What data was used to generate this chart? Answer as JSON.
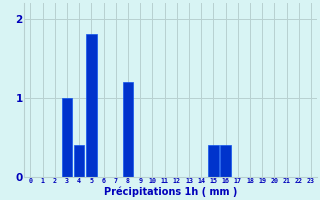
{
  "hours": [
    0,
    1,
    2,
    3,
    4,
    5,
    6,
    7,
    8,
    9,
    10,
    11,
    12,
    13,
    14,
    15,
    16,
    17,
    18,
    19,
    20,
    21,
    22,
    23
  ],
  "values": [
    0,
    0,
    0,
    1.0,
    0.4,
    1.8,
    0,
    0,
    1.2,
    0,
    0,
    0,
    0,
    0,
    0,
    0.4,
    0.4,
    0,
    0,
    0,
    0,
    0,
    0,
    0
  ],
  "bar_color": "#0033cc",
  "bar_edge_color": "#1155ee",
  "background_color": "#d8f4f4",
  "grid_color": "#b8d0d0",
  "text_color": "#0000bb",
  "xlabel": "Précipitations 1h ( mm )",
  "yticks": [
    0,
    1,
    2
  ],
  "ylim": [
    0,
    2.2
  ],
  "xlim": [
    -0.5,
    23.5
  ]
}
